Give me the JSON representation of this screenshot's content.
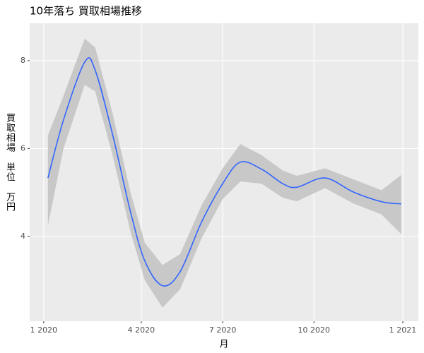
{
  "chart_data": {
    "type": "smooth",
    "title": "10年落ち 買取相場推移",
    "x_label": "月",
    "y_label": "買取相場　単位　万円",
    "x": [
      1.14,
      1.66,
      2.37,
      2.72,
      3.3,
      3.9,
      4.38,
      4.97,
      5.56,
      6.27,
      6.98,
      7.57,
      8.28,
      8.99,
      9.46,
      10.4,
      11.35,
      12.29,
      12.95
    ],
    "values": [
      5.33,
      6.65,
      7.97,
      7.78,
      6.32,
      4.56,
      3.44,
      2.88,
      3.2,
      4.32,
      5.2,
      5.69,
      5.53,
      5.2,
      5.12,
      5.33,
      5.01,
      4.79,
      4.74
    ],
    "upper": [
      6.3,
      7.2,
      8.5,
      8.3,
      6.8,
      5.0,
      3.85,
      3.35,
      3.6,
      4.7,
      5.55,
      6.1,
      5.85,
      5.5,
      5.38,
      5.55,
      5.3,
      5.05,
      5.4
    ],
    "lower": [
      4.25,
      6.0,
      7.45,
      7.3,
      5.85,
      4.1,
      3.0,
      2.38,
      2.8,
      3.95,
      4.85,
      5.25,
      5.2,
      4.88,
      4.8,
      5.1,
      4.75,
      4.5,
      4.05
    ],
    "color": "#3366ff",
    "band_color": "#c8c8c8",
    "xlim": [
      0.53,
      13.52
    ],
    "ylim": [
      2.07,
      8.85
    ],
    "xticks": [
      {
        "value": 1,
        "label": "1 2020"
      },
      {
        "value": 4.26,
        "label": "4 2020"
      },
      {
        "value": 6.98,
        "label": "7 2020"
      },
      {
        "value": 10.03,
        "label": "10 2020"
      },
      {
        "value": 13,
        "label": "1 2021"
      }
    ],
    "yticks": [
      4,
      6,
      8
    ],
    "grid": true
  }
}
